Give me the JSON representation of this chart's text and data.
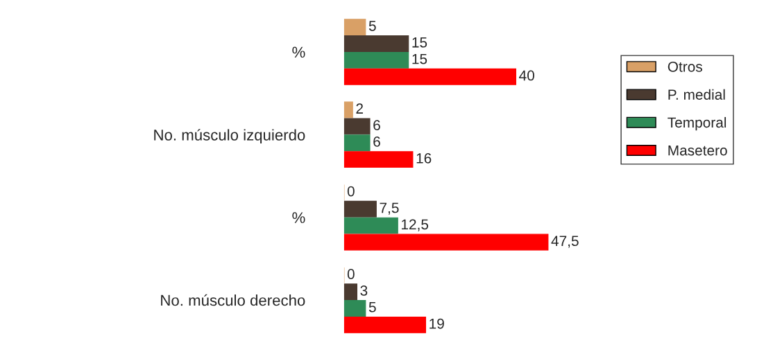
{
  "chart_data": {
    "type": "bar",
    "orientation": "horizontal",
    "categories": [
      "%",
      "No. músculo izquierdo",
      "%",
      "No. músculo derecho"
    ],
    "series": [
      {
        "name": "Otros",
        "color": "#d9a066",
        "values": [
          5,
          2,
          0,
          0
        ],
        "value_labels": [
          "5",
          "2",
          "0",
          "0"
        ]
      },
      {
        "name": "P. medial",
        "color": "#4a3a30",
        "values": [
          15,
          6,
          7.5,
          3
        ],
        "value_labels": [
          "15",
          "6",
          "7,5",
          "3"
        ]
      },
      {
        "name": "Temporal",
        "color": "#2e8b57",
        "values": [
          15,
          6,
          12.5,
          5
        ],
        "value_labels": [
          "15",
          "6",
          "12,5",
          "5"
        ]
      },
      {
        "name": "Masetero",
        "color": "#ff0000",
        "values": [
          40,
          16,
          47.5,
          19
        ],
        "value_labels": [
          "40",
          "16",
          "47,5",
          "19"
        ]
      }
    ],
    "legend": "right",
    "grid": false
  }
}
